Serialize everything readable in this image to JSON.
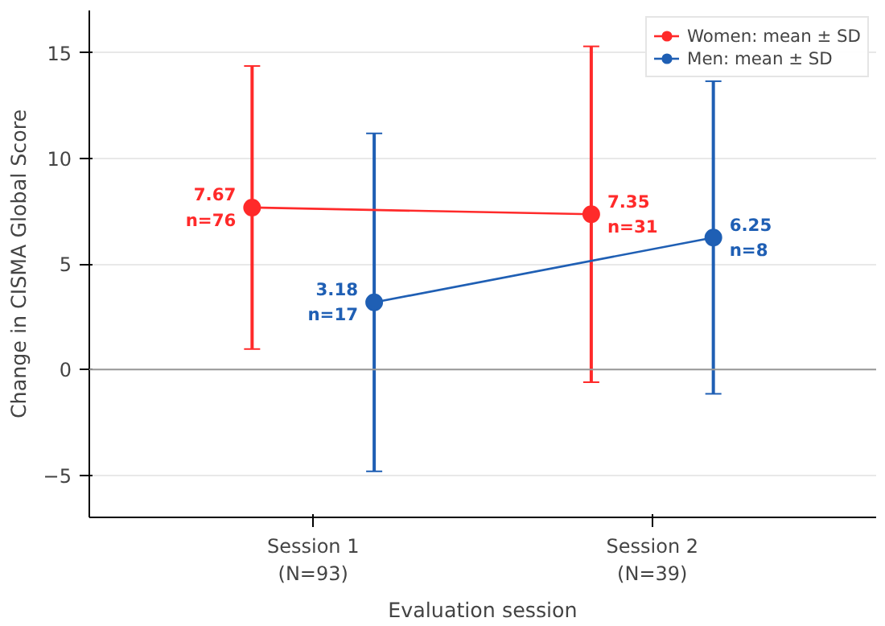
{
  "chart_data": {
    "type": "line",
    "xlabel": "Evaluation session",
    "ylabel": "Change in CISMA Global Score",
    "categories": [
      "Session 1\n(N=93)",
      "Session 2\n(N=39)"
    ],
    "series": [
      {
        "name": "Women: mean ± SD",
        "color": "#ff2a2a",
        "values": [
          7.67,
          7.35
        ],
        "errors": [
          6.7,
          7.95
        ],
        "value_labels": [
          "7.67\nn=76",
          "7.35\nn=31"
        ]
      },
      {
        "name": "Men: mean ± SD",
        "color": "#1f5fb4",
        "values": [
          3.18,
          6.25
        ],
        "errors": [
          8.0,
          7.4
        ],
        "value_labels": [
          "3.18\nn=17",
          "6.25\nn=8"
        ]
      }
    ],
    "ylim": [
      -7,
      17
    ],
    "yticks": [
      {
        "value": -5,
        "label": "−5"
      },
      0,
      5,
      10,
      15
    ],
    "ref_lines": [
      {
        "axis": "y",
        "value": 0,
        "color": "#999999"
      }
    ],
    "grid": "y",
    "legend": "top right",
    "marker": "circle",
    "line_style": "solid"
  }
}
